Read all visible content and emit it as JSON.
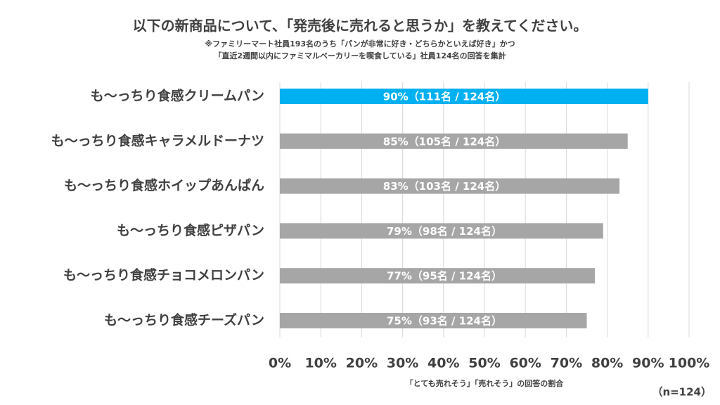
{
  "chart_data": {
    "type": "bar",
    "orientation": "horizontal",
    "title": "以下の新商品について、「発売後に売れると思うか」を教えてください。",
    "subtitle": [
      "※ファミリーマート社員193名のうち「パンが非常に好き・どちらかといえば好き」かつ",
      "「直近2週間以内にファミマルベーカリーを喫食している」社員124名の回答を集計"
    ],
    "categories": [
      "も～っちり食感クリームパン",
      "も～っちり食感キャラメルドーナツ",
      "も～っちり食感ホイップあんぱん",
      "も～っちり食感ピザパン",
      "も～っちり食感チョコメロンパン",
      "も～っちり食感チーズパン"
    ],
    "values": [
      90,
      85,
      83,
      79,
      77,
      75
    ],
    "value_labels": [
      "90%（111名 / 124名）",
      "85%（105名 / 124名）",
      "83%（103名 / 124名）",
      "79%（98名 / 124名）",
      "77%（95名 / 124名）",
      "75%（93名 / 124名）"
    ],
    "colors": [
      "#00b0f0",
      "#a6a6a6",
      "#a6a6a6",
      "#a6a6a6",
      "#a6a6a6",
      "#a6a6a6"
    ],
    "xlabel": "「とても売れそう」「売れそう」の回答の割合",
    "note": "（n=124）",
    "xlim": [
      0,
      100
    ],
    "xticks": [
      {
        "value": 0,
        "label": "0%"
      },
      {
        "value": 10,
        "label": "10%"
      },
      {
        "value": 20,
        "label": "20%"
      },
      {
        "value": 30,
        "label": "30%"
      },
      {
        "value": 40,
        "label": "40%"
      },
      {
        "value": 50,
        "label": "50%"
      },
      {
        "value": 60,
        "label": "60%"
      },
      {
        "value": 70,
        "label": "70%"
      },
      {
        "value": 80,
        "label": "80%"
      },
      {
        "value": 90,
        "label": "90%"
      },
      {
        "value": 100,
        "label": "100%"
      }
    ],
    "grid": true
  }
}
